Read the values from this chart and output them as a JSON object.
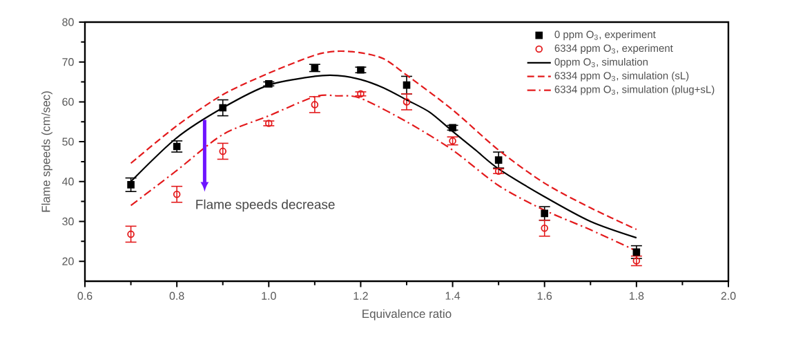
{
  "chart_data": {
    "type": "scatter",
    "xlabel": "Equivalence ratio",
    "ylabel": "Flame speeds (cm/sec)",
    "xlim": [
      0.6,
      2.0
    ],
    "ylim": [
      15,
      80
    ],
    "xticks": [
      {
        "value": 0.6,
        "label": "0.6"
      },
      {
        "value": 0.8,
        "label": "0.8"
      },
      {
        "value": 1.0,
        "label": "1.0"
      },
      {
        "value": 1.2,
        "label": "1.2"
      },
      {
        "value": 1.4,
        "label": "1.4"
      },
      {
        "value": 1.6,
        "label": "1.6"
      },
      {
        "value": 1.8,
        "label": "1.8"
      },
      {
        "value": 2.0,
        "label": "2.0"
      }
    ],
    "yticks": [
      20,
      30,
      40,
      50,
      60,
      70,
      80
    ],
    "legend": "top right",
    "grid": false,
    "annotations": [
      "Flame speeds decrease"
    ],
    "series": [
      {
        "name": "0 ppm O$_{3}$, experiment",
        "marker": "square",
        "color": "#000000",
        "x": [
          0.7,
          0.8,
          0.9,
          1.0,
          1.1,
          1.2,
          1.3,
          1.4,
          1.5,
          1.6,
          1.8
        ],
        "values": [
          39.2,
          48.8,
          58.5,
          64.5,
          68.5,
          68.0,
          64.2,
          53.5,
          45.4,
          32.0,
          22.3
        ],
        "errors": [
          1.7,
          1.4,
          2.0,
          0.5,
          0.9,
          0.7,
          2.2,
          0.6,
          2.0,
          1.7,
          1.6
        ]
      },
      {
        "name": "6334 ppm O$_{3}$, experiment",
        "marker": "circle",
        "color": "#e31a1c",
        "x": [
          0.7,
          0.8,
          0.9,
          1.0,
          1.1,
          1.2,
          1.3,
          1.4,
          1.5,
          1.6,
          1.8
        ],
        "values": [
          26.8,
          36.8,
          47.6,
          54.6,
          59.3,
          62.0,
          60.0,
          50.2,
          42.6,
          28.3,
          20.1
        ],
        "errors": [
          2.0,
          2.0,
          2.0,
          0.6,
          2.0,
          0.5,
          2.0,
          1.0,
          0.6,
          2.0,
          1.2
        ]
      },
      {
        "name": "0ppm O$_{3}$, simulation",
        "type": "line",
        "marker": "none",
        "line_style": "solid",
        "color": "#000000",
        "x": [
          0.7,
          0.8,
          0.9,
          1.0,
          1.1,
          1.15,
          1.2,
          1.25,
          1.3,
          1.35,
          1.4,
          1.45,
          1.5,
          1.6,
          1.7,
          1.8
        ],
        "values": [
          40.0,
          51.0,
          58.5,
          64.2,
          66.4,
          66.6,
          65.6,
          63.5,
          60.5,
          57.4,
          52.6,
          47.9,
          43.2,
          36.2,
          30.0,
          25.9
        ]
      },
      {
        "name": "6334 ppm O$_{3}$, simulation (sL)",
        "type": "line",
        "marker": "none",
        "line_style": "dashed",
        "color": "#e31a1c",
        "x": [
          0.7,
          0.8,
          0.9,
          1.0,
          1.1,
          1.15,
          1.2,
          1.25,
          1.3,
          1.4,
          1.5,
          1.6,
          1.7,
          1.8
        ],
        "values": [
          44.6,
          54.0,
          61.8,
          67.2,
          71.7,
          72.7,
          72.3,
          70.8,
          66.7,
          58.0,
          47.9,
          39.6,
          33.4,
          28.0
        ]
      },
      {
        "name": "6334 ppm O$_{3}$, simulation (plug+sL)",
        "type": "line",
        "marker": "none",
        "line_style": "dashdot",
        "color": "#e31a1c",
        "x": [
          0.7,
          0.8,
          0.9,
          1.0,
          1.1,
          1.15,
          1.2,
          1.3,
          1.4,
          1.5,
          1.6,
          1.7,
          1.8
        ],
        "values": [
          34.0,
          42.8,
          51.8,
          56.5,
          61.3,
          61.5,
          60.9,
          55.0,
          47.9,
          39.0,
          32.8,
          27.9,
          22.6
        ]
      }
    ]
  }
}
